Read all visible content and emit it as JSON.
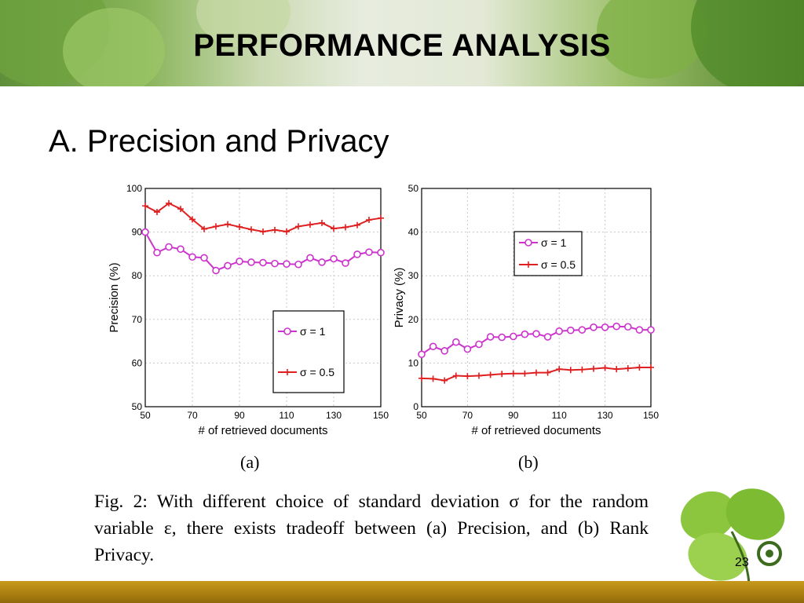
{
  "slide": {
    "title": "PERFORMANCE ANALYSIS",
    "section": "A. Precision and Privacy",
    "page_number": "23"
  },
  "figure": {
    "panel_a_label": "(a)",
    "panel_b_label": "(b)",
    "caption": "Fig. 2: With different choice of standard deviation σ for the random variable ε, there exists tradeoff between (a) Precision, and (b) Rank Privacy."
  },
  "colors": {
    "sigma1": "#cc33cc",
    "sigma05": "#e02020",
    "footer": "#a97e10"
  },
  "chart_data": [
    {
      "type": "line",
      "panel": "(a)",
      "xlabel": "# of retrieved documents",
      "ylabel": "Precision (%)",
      "xlim": [
        50,
        150
      ],
      "ylim": [
        50,
        100
      ],
      "xticks": [
        50,
        70,
        90,
        110,
        130,
        150
      ],
      "yticks": [
        50,
        60,
        70,
        80,
        90,
        100
      ],
      "grid": true,
      "legend_position": "center",
      "x": [
        50,
        55,
        60,
        65,
        70,
        75,
        80,
        85,
        90,
        95,
        100,
        105,
        110,
        115,
        120,
        125,
        130,
        135,
        140,
        145,
        150
      ],
      "series": [
        {
          "name": "σ = 1",
          "marker": "circle",
          "values": [
            90,
            85.3,
            86.6,
            86.1,
            84.3,
            84.1,
            81.2,
            82.3,
            83.3,
            83.1,
            83,
            82.8,
            82.7,
            82.6,
            84.1,
            83.1,
            83.9,
            82.9,
            84.9,
            85.4,
            85.3
          ]
        },
        {
          "name": "σ = 0.5",
          "marker": "plus",
          "values": [
            96,
            94.6,
            96.6,
            95.3,
            92.9,
            90.7,
            91.3,
            91.8,
            91.2,
            90.6,
            90.1,
            90.5,
            90.1,
            91.3,
            91.7,
            92.1,
            90.8,
            91.1,
            91.6,
            92.8,
            93.2
          ]
        }
      ]
    },
    {
      "type": "line",
      "panel": "(b)",
      "xlabel": "# of retrieved documents",
      "ylabel": "Privacy (%)",
      "xlim": [
        50,
        150
      ],
      "ylim": [
        0,
        50
      ],
      "xticks": [
        50,
        70,
        90,
        110,
        130,
        150
      ],
      "yticks": [
        0,
        10,
        20,
        30,
        40,
        50
      ],
      "grid": true,
      "legend_position": "top-center",
      "x": [
        50,
        55,
        60,
        65,
        70,
        75,
        80,
        85,
        90,
        95,
        100,
        105,
        110,
        115,
        120,
        125,
        130,
        135,
        140,
        145,
        150
      ],
      "series": [
        {
          "name": "σ = 1",
          "marker": "circle",
          "values": [
            12,
            13.8,
            12.8,
            14.8,
            13.2,
            14.3,
            16,
            15.9,
            16.1,
            16.6,
            16.7,
            16,
            17.3,
            17.5,
            17.6,
            18.2,
            18.2,
            18.4,
            18.3,
            17.6,
            17.6
          ]
        },
        {
          "name": "σ = 0.5",
          "marker": "plus",
          "values": [
            6.5,
            6.4,
            6,
            7.1,
            7,
            7.1,
            7.3,
            7.5,
            7.6,
            7.6,
            7.8,
            7.8,
            8.6,
            8.4,
            8.5,
            8.7,
            8.9,
            8.6,
            8.8,
            9,
            9
          ]
        }
      ]
    }
  ]
}
